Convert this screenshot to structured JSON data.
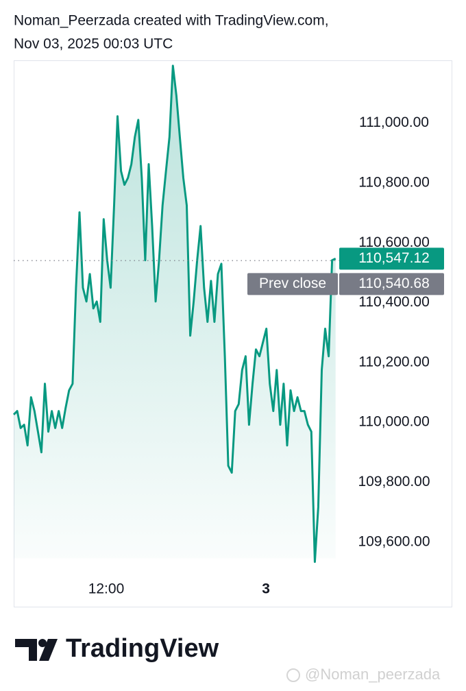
{
  "chart_data": {
    "type": "line",
    "title": "Noman_Peerzada created with TradingView.com,",
    "subtitle": "Nov 03, 2025 00:03 UTC",
    "x": [
      5.05,
      5.31,
      5.57,
      5.83,
      6.09,
      6.35,
      6.61,
      6.87,
      7.13,
      7.39,
      7.65,
      7.91,
      8.17,
      8.43,
      8.69,
      8.95,
      9.21,
      9.47,
      9.73,
      9.99,
      10.25,
      10.51,
      10.77,
      11.03,
      11.29,
      11.55,
      11.81,
      12.07,
      12.33,
      12.59,
      12.85,
      13.11,
      13.37,
      13.63,
      13.89,
      14.15,
      14.41,
      14.67,
      14.93,
      15.19,
      15.45,
      15.71,
      15.97,
      16.23,
      16.49,
      16.75,
      17.01,
      17.27,
      17.53,
      17.79,
      18.05,
      18.31,
      18.57,
      18.83,
      19.09,
      19.35,
      19.61,
      19.87,
      20.13,
      20.39,
      20.65,
      20.91,
      21.17,
      21.43,
      21.69,
      21.95,
      22.21,
      22.47,
      22.73,
      22.99,
      23.25,
      23.51,
      23.77,
      24.03,
      24.29,
      24.55,
      24.81,
      25.07,
      25.33,
      25.59,
      25.85,
      26.11,
      26.37,
      26.63,
      26.89,
      27.15,
      27.41,
      27.67,
      27.93,
      28.19,
      28.45,
      28.71,
      28.97,
      29.23
    ],
    "series": [
      {
        "color": "#089981",
        "values": [
          110026,
          110038,
          109981,
          109992,
          109923,
          110084,
          110038,
          109969,
          109900,
          110129,
          109969,
          110038,
          109981,
          110038,
          109981,
          110049,
          110107,
          110129,
          110450,
          110702,
          110450,
          110404,
          110496,
          110381,
          110404,
          110336,
          110679,
          110542,
          110450,
          110725,
          111023,
          110840,
          110794,
          110817,
          110863,
          110954,
          111011,
          110817,
          110542,
          110863,
          110656,
          110404,
          110542,
          110725,
          110840,
          110954,
          111192,
          111092,
          110954,
          110817,
          110725,
          110290,
          110404,
          110542,
          110656,
          110450,
          110336,
          110473,
          110336,
          110496,
          110530,
          110221,
          109855,
          109832,
          110038,
          110061,
          110175,
          110221,
          109992,
          110129,
          110244,
          110221,
          110267,
          110313,
          110129,
          110038,
          110175,
          109992,
          110129,
          109923,
          110107,
          110038,
          110084,
          110038,
          110038,
          109992,
          109969,
          109534,
          109717,
          110175,
          110313,
          110221,
          110542,
          110547.12
        ]
      }
    ],
    "last_value_label": "110,547.12",
    "prev_close": {
      "name": "Prev close",
      "value": 110540.68,
      "label": "110,540.68"
    },
    "xlim": [
      5.05,
      38.0
    ],
    "xticks": [
      {
        "value": 12,
        "label": "12:00"
      },
      {
        "value": 24,
        "label": "3"
      }
    ],
    "ylim": [
      109500,
      111210
    ],
    "yticks": [
      {
        "value": 109600,
        "label": "109,600.00"
      },
      {
        "value": 109800,
        "label": "109,800.00"
      },
      {
        "value": 110000,
        "label": "110,000.00"
      },
      {
        "value": 110200,
        "label": "110,200.00"
      },
      {
        "value": 110400,
        "label": "110,400.00"
      },
      {
        "value": 110600,
        "label": "110,600.00"
      },
      {
        "value": 110800,
        "label": "110,800.00"
      },
      {
        "value": 111000,
        "label": "111,000.00"
      }
    ],
    "grid": false,
    "brand": "TradingView",
    "watermark": "@Noman_peerzada"
  }
}
